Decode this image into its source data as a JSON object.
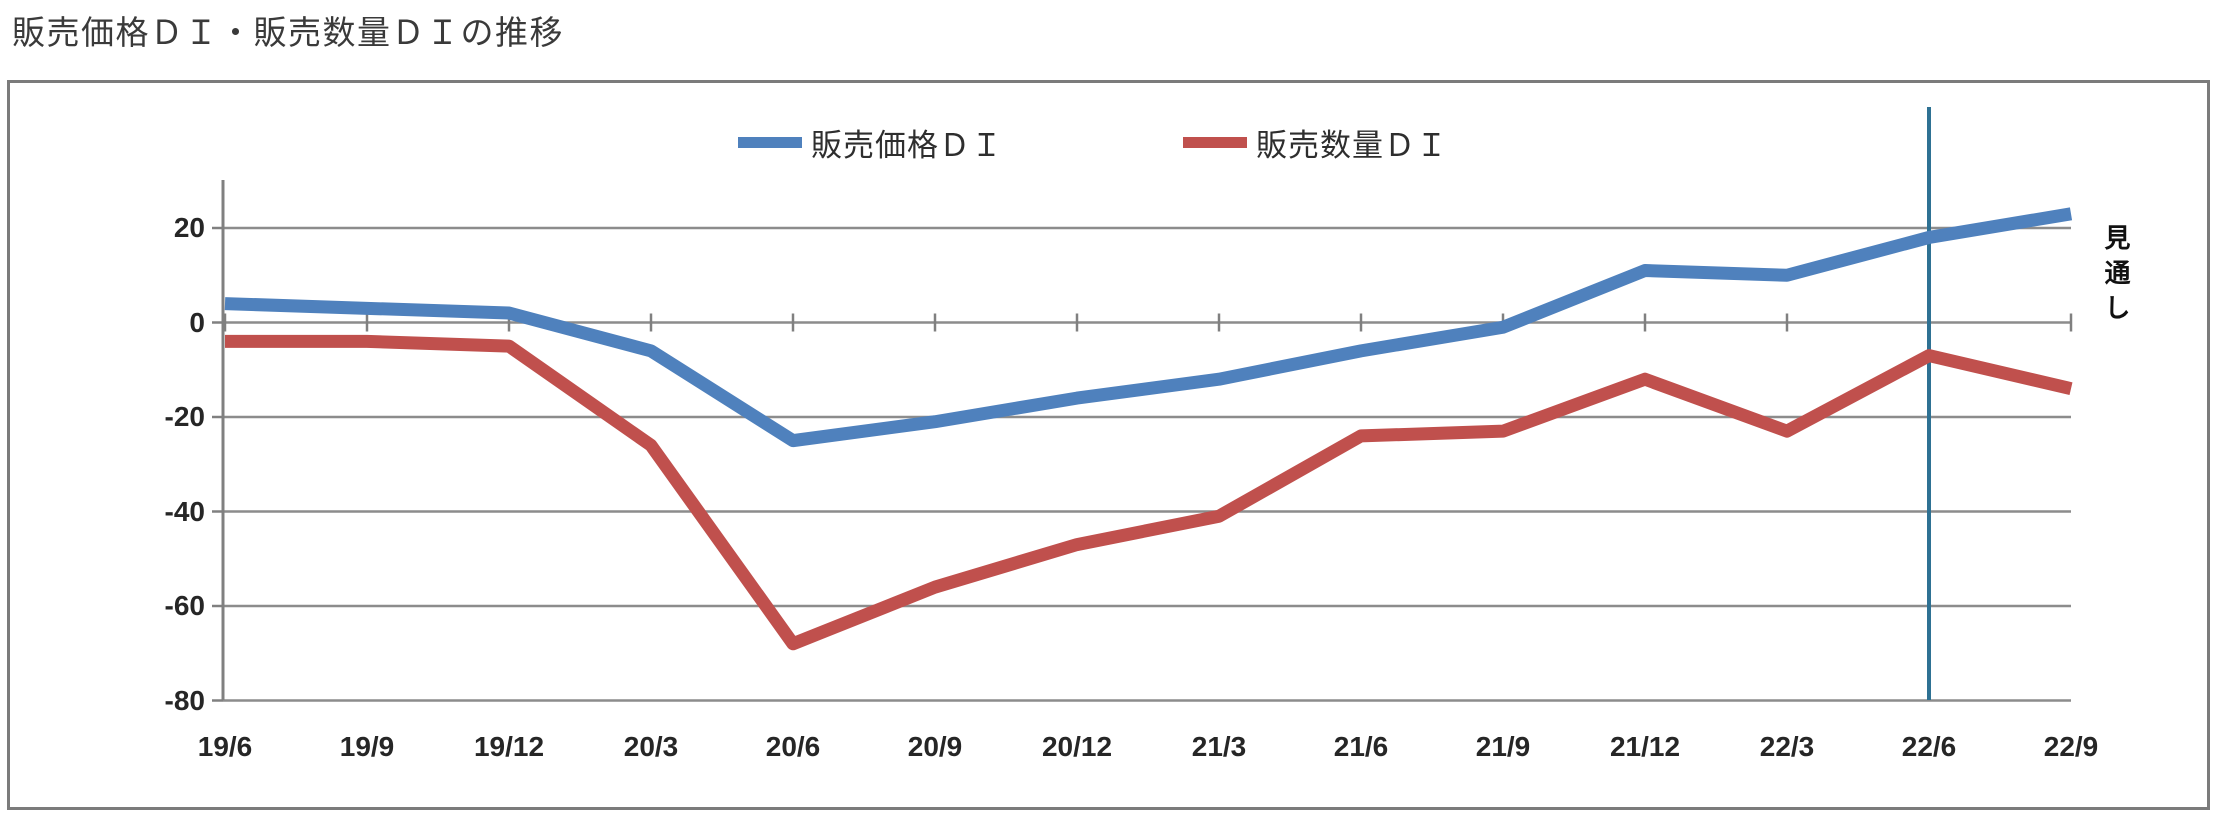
{
  "title": "販売価格ＤＩ・販売数量ＤＩの推移",
  "colors": {
    "price_series": "#4F81BD",
    "quantity_series": "#C0504D",
    "forecast_divider": "#2E7193",
    "gridline": "#8C8C8C",
    "axis": "#808080",
    "figure_border": "#7B7B7B",
    "text": "#262626"
  },
  "legend": {
    "price_label": "販売価格ＤＩ",
    "quantity_label": "販売数量ＤＩ"
  },
  "chart_data": {
    "type": "line",
    "title": "販売価格ＤＩ・販売数量ＤＩの推移",
    "categories": [
      "19/6",
      "19/9",
      "19/12",
      "20/3",
      "20/6",
      "20/9",
      "20/12",
      "21/3",
      "21/6",
      "21/9",
      "21/12",
      "22/3",
      "22/6",
      "22/9"
    ],
    "series": [
      {
        "name": "販売価格ＤＩ",
        "color": "#4F81BD",
        "values": [
          4,
          3,
          2,
          -6,
          -25,
          -21,
          -16,
          -12,
          -6,
          -1,
          11,
          10,
          18,
          23
        ]
      },
      {
        "name": "販売数量ＤＩ",
        "color": "#C0504D",
        "values": [
          -4,
          -4,
          -5,
          -26,
          -68,
          -56,
          -47,
          -41,
          -24,
          -23,
          -12,
          -23,
          -7,
          -14
        ]
      }
    ],
    "yticks": [
      20,
      0,
      -20,
      -40,
      -60,
      -80
    ],
    "ytick_labels": [
      "20",
      "0",
      "-20",
      "-40",
      "-60",
      "-80"
    ],
    "ylim": [
      -80,
      30
    ],
    "grid": true,
    "legend_position": "top",
    "forecast_divider_category": "22/6",
    "annotation": "見通し"
  }
}
